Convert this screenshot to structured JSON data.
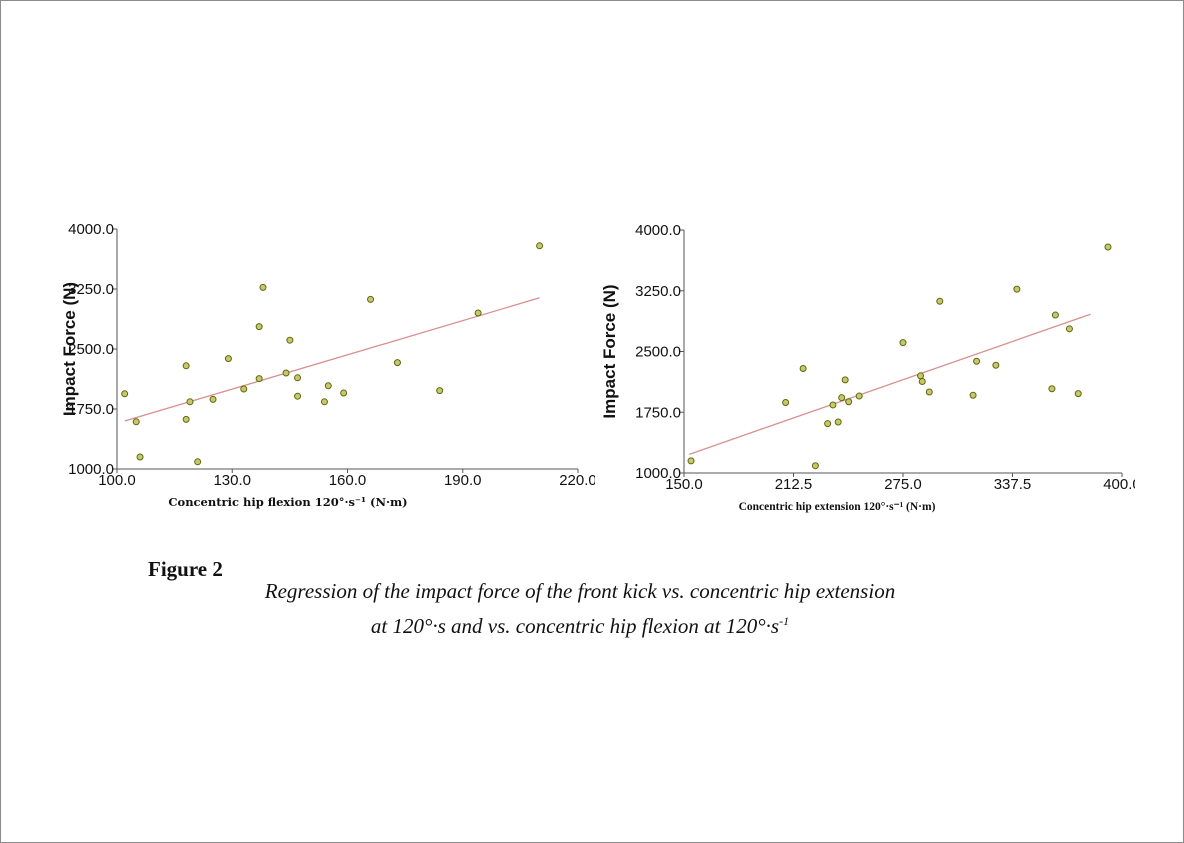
{
  "figure": {
    "title": "Figure 2",
    "caption_line1": "Regression of the impact force of the front kick vs. concentric hip extension",
    "caption_line2_a": "at 120°·s  and vs. concentric hip flexion at 120°·s",
    "caption_line2_sup": "-1"
  },
  "colors": {
    "point_fill": "#c9c76a",
    "point_stroke": "#5a6a10",
    "regression_line": "#d98f8f",
    "axis": "#555555"
  },
  "chart_data": [
    {
      "type": "scatter",
      "title": "",
      "xlabel": "Concentric hip flexion 120°·s⁻¹ (N·m)",
      "ylabel": "Impact Force (N)",
      "xlim": [
        100.0,
        220.0
      ],
      "ylim": [
        1000.0,
        4000.0
      ],
      "x_ticks": [
        "100.0",
        "130.0",
        "160.0",
        "190.0",
        "220.0"
      ],
      "y_ticks": [
        "1000.0",
        "1750.0",
        "2500.0",
        "3250.0",
        "4000.0"
      ],
      "grid": false,
      "points": [
        {
          "x": 102,
          "y": 1940
        },
        {
          "x": 105,
          "y": 1590
        },
        {
          "x": 106,
          "y": 1150
        },
        {
          "x": 118,
          "y": 2290
        },
        {
          "x": 118,
          "y": 1620
        },
        {
          "x": 119,
          "y": 1840
        },
        {
          "x": 121,
          "y": 1090
        },
        {
          "x": 125,
          "y": 1870
        },
        {
          "x": 129,
          "y": 2380
        },
        {
          "x": 133,
          "y": 2000
        },
        {
          "x": 137,
          "y": 2780
        },
        {
          "x": 137,
          "y": 2130
        },
        {
          "x": 138,
          "y": 3270
        },
        {
          "x": 144,
          "y": 2200
        },
        {
          "x": 145,
          "y": 2610
        },
        {
          "x": 147,
          "y": 2140
        },
        {
          "x": 147,
          "y": 1910
        },
        {
          "x": 154,
          "y": 1840
        },
        {
          "x": 155,
          "y": 2040
        },
        {
          "x": 159,
          "y": 1950
        },
        {
          "x": 166,
          "y": 3120
        },
        {
          "x": 173,
          "y": 2330
        },
        {
          "x": 184,
          "y": 1980
        },
        {
          "x": 194,
          "y": 2950
        },
        {
          "x": 210,
          "y": 3790
        }
      ],
      "regression": {
        "x": [
          102,
          210
        ],
        "y": [
          1600,
          3140
        ]
      }
    },
    {
      "type": "scatter",
      "title": "",
      "xlabel": "Concentric hip extension 120°·s⁻¹ (N·m)",
      "ylabel": "Impact Force (N)",
      "xlim": [
        150.0,
        400.0
      ],
      "ylim": [
        1000.0,
        4000.0
      ],
      "x_ticks": [
        "150.0",
        "212.5",
        "275.0",
        "337.5",
        "400.0"
      ],
      "y_ticks": [
        "1000.0",
        "1750.0",
        "2500.0",
        "3250.0",
        "4000.0"
      ],
      "grid": false,
      "points": [
        {
          "x": 154,
          "y": 1150
        },
        {
          "x": 208,
          "y": 1870
        },
        {
          "x": 218,
          "y": 2290
        },
        {
          "x": 225,
          "y": 1090
        },
        {
          "x": 232,
          "y": 1610
        },
        {
          "x": 235,
          "y": 1840
        },
        {
          "x": 238,
          "y": 1630
        },
        {
          "x": 240,
          "y": 1930
        },
        {
          "x": 242,
          "y": 2150
        },
        {
          "x": 244,
          "y": 1880
        },
        {
          "x": 250,
          "y": 1950
        },
        {
          "x": 275,
          "y": 2610
        },
        {
          "x": 285,
          "y": 2200
        },
        {
          "x": 286,
          "y": 2130
        },
        {
          "x": 290,
          "y": 2000
        },
        {
          "x": 296,
          "y": 3120
        },
        {
          "x": 315,
          "y": 1960
        },
        {
          "x": 317,
          "y": 2380
        },
        {
          "x": 328,
          "y": 2330
        },
        {
          "x": 340,
          "y": 3270
        },
        {
          "x": 360,
          "y": 2040
        },
        {
          "x": 362,
          "y": 2950
        },
        {
          "x": 370,
          "y": 2780
        },
        {
          "x": 375,
          "y": 1980
        },
        {
          "x": 392,
          "y": 3790
        }
      ],
      "regression": {
        "x": [
          153,
          382
        ],
        "y": [
          1230,
          2960
        ]
      }
    }
  ]
}
